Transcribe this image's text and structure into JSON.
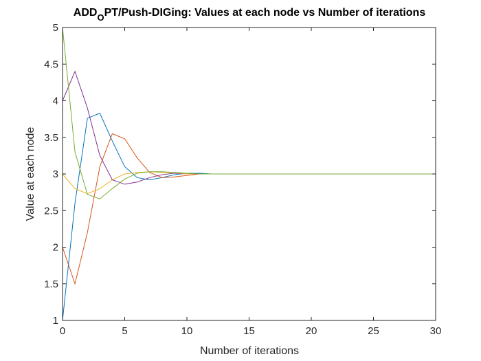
{
  "chart_data": {
    "type": "line",
    "title": {
      "main": "ADD",
      "subscript": "O",
      "rest": "PT/Push-DIGing: Values at each node vs Number of iterations"
    },
    "xlabel": "Number of iterations",
    "ylabel": "Value at each node",
    "xlim": [
      0,
      30
    ],
    "ylim": [
      1,
      5
    ],
    "xticks": [
      0,
      5,
      10,
      15,
      20,
      25,
      30
    ],
    "yticks": [
      1,
      1.5,
      2,
      2.5,
      3,
      3.5,
      4,
      4.5,
      5
    ],
    "ytick_labels": [
      "1",
      "1.5",
      "2",
      "2.5",
      "3",
      "3.5",
      "4",
      "4.5",
      "5"
    ],
    "grid": false,
    "legend": "none",
    "x": [
      0,
      1,
      2,
      3,
      4,
      5,
      6,
      7,
      8,
      9,
      10,
      11,
      12,
      13,
      14,
      15,
      16,
      17,
      18,
      19,
      20,
      21,
      22,
      23,
      24,
      25,
      26,
      27,
      28,
      29,
      30
    ],
    "series": [
      {
        "color": "#0072BD",
        "values": [
          1.0,
          2.6,
          3.76,
          3.83,
          3.45,
          3.1,
          2.95,
          2.92,
          2.95,
          2.99,
          3.01,
          3.01,
          3.0,
          3.0,
          3.0,
          3.0,
          3.0,
          3.0,
          3.0,
          3.0,
          3.0,
          3.0,
          3.0,
          3.0,
          3.0,
          3.0,
          3.0,
          3.0,
          3.0,
          3.0,
          3.0
        ]
      },
      {
        "color": "#D95319",
        "values": [
          2.0,
          1.5,
          2.2,
          3.1,
          3.55,
          3.48,
          3.22,
          3.02,
          2.95,
          2.96,
          2.98,
          3.0,
          3.0,
          3.0,
          3.0,
          3.0,
          3.0,
          3.0,
          3.0,
          3.0,
          3.0,
          3.0,
          3.0,
          3.0,
          3.0,
          3.0,
          3.0,
          3.0,
          3.0,
          3.0,
          3.0
        ]
      },
      {
        "color": "#EDB120",
        "values": [
          3.0,
          2.8,
          2.73,
          2.8,
          2.92,
          3.0,
          3.02,
          3.03,
          3.02,
          3.01,
          3.0,
          3.0,
          3.0,
          3.0,
          3.0,
          3.0,
          3.0,
          3.0,
          3.0,
          3.0,
          3.0,
          3.0,
          3.0,
          3.0,
          3.0,
          3.0,
          3.0,
          3.0,
          3.0,
          3.0,
          3.0
        ]
      },
      {
        "color": "#7E2F8E",
        "values": [
          4.0,
          4.4,
          3.9,
          3.25,
          2.92,
          2.86,
          2.89,
          2.95,
          2.99,
          3.01,
          3.01,
          3.0,
          3.0,
          3.0,
          3.0,
          3.0,
          3.0,
          3.0,
          3.0,
          3.0,
          3.0,
          3.0,
          3.0,
          3.0,
          3.0,
          3.0,
          3.0,
          3.0,
          3.0,
          3.0,
          3.0
        ]
      },
      {
        "color": "#77AC30",
        "values": [
          5.0,
          3.3,
          2.72,
          2.66,
          2.8,
          2.93,
          3.01,
          3.03,
          3.03,
          3.02,
          3.01,
          3.0,
          3.0,
          3.0,
          3.0,
          3.0,
          3.0,
          3.0,
          3.0,
          3.0,
          3.0,
          3.0,
          3.0,
          3.0,
          3.0,
          3.0,
          3.0,
          3.0,
          3.0,
          3.0,
          3.0
        ]
      }
    ]
  }
}
